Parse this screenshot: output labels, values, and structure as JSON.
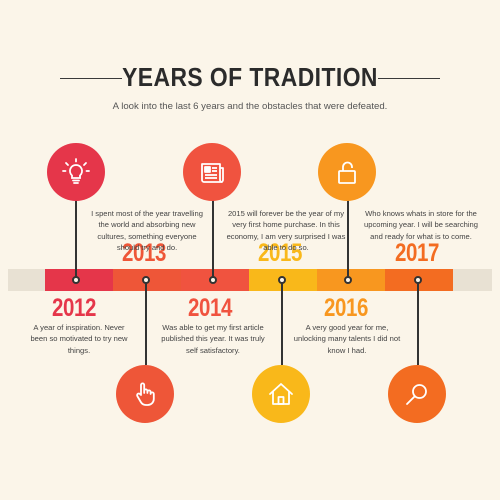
{
  "header": {
    "title": "YEARS OF TRADITION",
    "subtitle": "A look into the last 6 years and the obstacles that were defeated."
  },
  "colors": {
    "background": "#fbf5e9",
    "track": "#e8e1d3",
    "y2012": "#e5364a",
    "y2013": "#ee5638",
    "y2014": "#f0533f",
    "y2015": "#f9b81a",
    "y2016": "#f8971f",
    "y2017": "#f36c21"
  },
  "timeline": [
    {
      "year": "2012",
      "icon": "lightbulb-icon",
      "desc": "A year of inspiration.  Never been so motivated to try new things."
    },
    {
      "year": "2013",
      "icon": "hand-pointer-icon",
      "desc": "I spent most of the year travelling the world and absorbing new cultures, something everyone should try and do."
    },
    {
      "year": "2014",
      "icon": "newspaper-icon",
      "desc": "Was able to get my first article published this year.  It was truly self satisfactory."
    },
    {
      "year": "2015",
      "icon": "home-icon",
      "desc": "2015 will forever be the year of my very first home purchase.  In this economy, I am very surprised I was able to do so."
    },
    {
      "year": "2016",
      "icon": "unlock-icon",
      "desc": "A very good year for me, unlocking many talents I did not know I had."
    },
    {
      "year": "2017",
      "icon": "magnifier-icon",
      "desc": "Who knows whats in store for the upcoming year. I will be searching and ready for what is to come."
    }
  ]
}
